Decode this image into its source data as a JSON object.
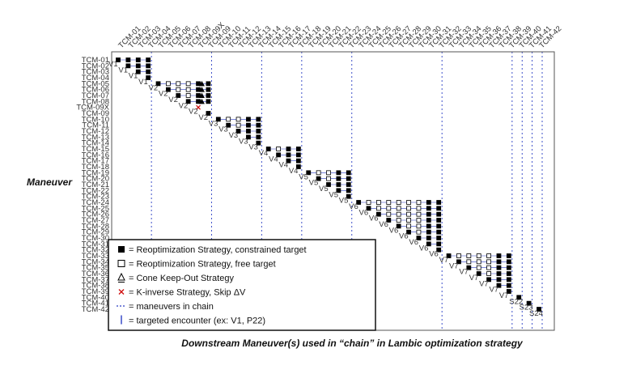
{
  "chart_data": {
    "type": "scatter",
    "title": "",
    "xlabel": "Downstream Maneuver(s) used in “chain” in Lambic optimization strategy",
    "ylabel": "Maneuver",
    "x_ticks": [
      "TCM-01",
      "TCM-02",
      "TCM-03",
      "TCM-04",
      "TCM-05",
      "TCM-06",
      "TCM-07",
      "TCM-08",
      "TCM-09X",
      "TCM-09",
      "TCM-10",
      "TCM-11",
      "TCM-12",
      "TCM-13",
      "TCM-14",
      "TCM-15",
      "TCM-16",
      "TCM-17",
      "TCM-18",
      "TCM-19",
      "TCM-20",
      "TCM-21",
      "TCM-22",
      "TCM-23",
      "TCM-24",
      "TCM-25",
      "TCM-26",
      "TCM-27",
      "TCM-28",
      "TCM-29",
      "TCM-30",
      "TCM-31",
      "TCM-32",
      "TCM-33",
      "TCM-34",
      "TCM-35",
      "TCM-36",
      "TCM-37",
      "TCM-38",
      "TCM-39",
      "TCM-40",
      "TCM-41",
      "TCM-42"
    ],
    "y_ticks": [
      "TCM-01",
      "TCM-02",
      "TCM-03",
      "TCM-04",
      "TCM-05",
      "TCM-06",
      "TCM-07",
      "TCM-08",
      "TCM-09X",
      "TCM-09",
      "TCM-10",
      "TCM-11",
      "TCM-12",
      "TCM-13",
      "TCM-14",
      "TCM-15",
      "TCM-16",
      "TCM-17",
      "TCM-18",
      "TCM-19",
      "TCM-20",
      "TCM-21",
      "TCM-22",
      "TCM-23",
      "TCM-24",
      "TCM-25",
      "TCM-26",
      "TCM-27",
      "TCM-28",
      "TCM-29",
      "TCM-30",
      "TCM-31",
      "TCM-32",
      "TCM-33",
      "TCM-34",
      "TCM-35",
      "TCM-36",
      "TCM-37",
      "TCM-38",
      "TCM-39",
      "TCM-40",
      "TCM-41",
      "TCM-42"
    ],
    "targets": [
      {
        "label": "V1",
        "x": "TCM-04"
      },
      {
        "label": "V2",
        "x": "TCM-09"
      },
      {
        "label": "V3",
        "x": "TCM-14"
      },
      {
        "label": "V4",
        "x": "TCM-18"
      },
      {
        "label": "V5",
        "x": "TCM-23"
      },
      {
        "label": "V6",
        "x": "TCM-32"
      },
      {
        "label": "V7",
        "x": "TCM-39"
      },
      {
        "label": "S22",
        "x": "TCM-40"
      },
      {
        "label": "S23",
        "x": "TCM-41"
      },
      {
        "label": "S24",
        "x": "TCM-42"
      }
    ],
    "groups": [
      {
        "target": "V1",
        "rows": [
          "TCM-01",
          "TCM-02",
          "TCM-03",
          "TCM-04"
        ],
        "start": "TCM-01",
        "end": "TCM-04",
        "strategy": "constrained"
      },
      {
        "target": "V2",
        "rows": [
          "TCM-05",
          "TCM-06",
          "TCM-07",
          "TCM-08"
        ],
        "start": "TCM-05",
        "end": "TCM-09",
        "strategy": "free"
      },
      {
        "target": "V2",
        "rows": [
          "TCM-09X"
        ],
        "start": "TCM-09X",
        "end": "TCM-09X",
        "strategy": "k-inverse"
      },
      {
        "target": "V2",
        "rows": [
          "TCM-09"
        ],
        "start": "TCM-09",
        "end": "TCM-09",
        "strategy": "constrained"
      },
      {
        "target": "V3",
        "rows": [
          "TCM-10",
          "TCM-11",
          "TCM-12",
          "TCM-13",
          "TCM-14"
        ],
        "start": "TCM-10",
        "end": "TCM-14",
        "strategy": "free"
      },
      {
        "target": "V4",
        "rows": [
          "TCM-15",
          "TCM-16",
          "TCM-17",
          "TCM-18"
        ],
        "start": "TCM-15",
        "end": "TCM-18",
        "strategy": "free"
      },
      {
        "target": "V5",
        "rows": [
          "TCM-19",
          "TCM-20",
          "TCM-21",
          "TCM-22",
          "TCM-23"
        ],
        "start": "TCM-19",
        "end": "TCM-23",
        "strategy": "free"
      },
      {
        "target": "V6",
        "rows": [
          "TCM-24",
          "TCM-25",
          "TCM-26",
          "TCM-27",
          "TCM-28",
          "TCM-29",
          "TCM-30",
          "TCM-31",
          "TCM-32"
        ],
        "start": "TCM-24",
        "end": "TCM-32",
        "strategy": "free"
      },
      {
        "target": "V7",
        "rows": [
          "TCM-33",
          "TCM-34",
          "TCM-35",
          "TCM-36",
          "TCM-37",
          "TCM-38",
          "TCM-39"
        ],
        "start": "TCM-33",
        "end": "TCM-39",
        "strategy": "free"
      },
      {
        "target": "S22",
        "rows": [
          "TCM-40"
        ],
        "start": "TCM-40",
        "end": "TCM-40",
        "strategy": "constrained"
      },
      {
        "target": "S23",
        "rows": [
          "TCM-41"
        ],
        "start": "TCM-41",
        "end": "TCM-41",
        "strategy": "constrained"
      },
      {
        "target": "S24",
        "rows": [
          "TCM-42"
        ],
        "start": "TCM-42",
        "end": "TCM-42",
        "strategy": "constrained"
      }
    ],
    "cone_rows": [
      "TCM-05",
      "TCM-06",
      "TCM-07",
      "TCM-08"
    ],
    "cone_x": "TCM-09",
    "grid": false,
    "legend_position": "bottom-left",
    "legend": [
      {
        "symbol": "filled-square",
        "text": "= Reoptimization Strategy, constrained target"
      },
      {
        "symbol": "open-square",
        "text": "= Reoptimization Strategy, free target"
      },
      {
        "symbol": "triangle",
        "text": "= Cone Keep-Out Strategy"
      },
      {
        "symbol": "red-x",
        "text": "= K-inverse Strategy, Skip ΔV"
      },
      {
        "symbol": "dashed-line",
        "text": "= maneuvers in chain"
      },
      {
        "symbol": "solid-bar",
        "text": "= targeted encounter (ex: V1, P22)"
      }
    ],
    "colors": {
      "marker": "#000000",
      "chain_line": "#2a3ec4",
      "target_line": "#2a3ec4",
      "k_inverse": "#d01010"
    }
  }
}
